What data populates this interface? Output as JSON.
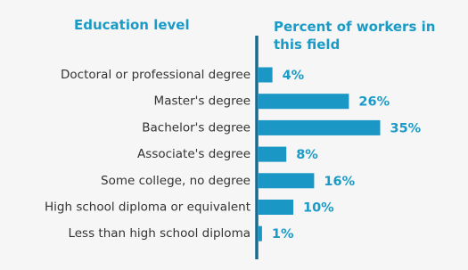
{
  "chart_data": {
    "type": "bar",
    "orientation": "horizontal",
    "category_title": "Education level",
    "value_title": "Percent of workers in this field",
    "categories": [
      "Doctoral or professional degree",
      "Master's degree",
      "Bachelor's degree",
      "Associate's degree",
      "Some college, no degree",
      "High school diploma or equivalent",
      "Less than high school diploma"
    ],
    "values": [
      4,
      26,
      35,
      8,
      16,
      10,
      1
    ],
    "value_labels": [
      "4%",
      "26%",
      "35%",
      "8%",
      "16%",
      "10%",
      "1%"
    ],
    "color": "#1b97c5",
    "axis_color": "#1b6a8f"
  }
}
